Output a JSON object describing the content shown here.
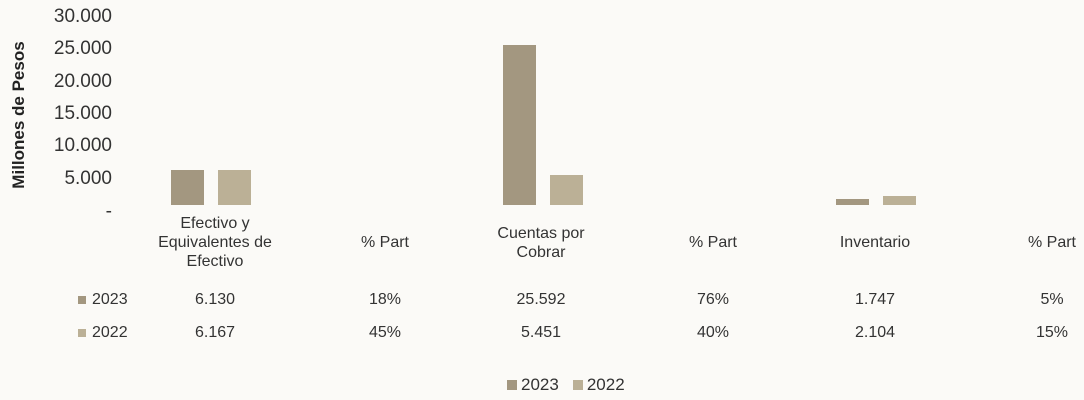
{
  "chart_data": {
    "type": "bar",
    "ylabel": "Millones de Pesos",
    "yticks": [
      "30.000",
      "25.000",
      "20.000",
      "15.000",
      "10.000",
      "5.000",
      "-"
    ],
    "ylim": [
      0,
      30000
    ],
    "categories": [
      "Efectivo y Equivalentes de Efectivo",
      "Cuentas por Cobrar",
      "Inventario"
    ],
    "series": [
      {
        "name": "2023",
        "values": [
          6130,
          25592,
          1747
        ],
        "color": "#a39780"
      },
      {
        "name": "2022",
        "values": [
          6167,
          5451,
          2104
        ],
        "color": "#bbb096"
      }
    ],
    "table": {
      "columns": [
        "Efectivo y Equivalentes de Efectivo",
        "% Part",
        "Cuentas por Cobrar",
        "% Part",
        "Inventario",
        "% Part"
      ],
      "rows": [
        {
          "label": "2023",
          "cells": [
            "6.130",
            "18%",
            "25.592",
            "76%",
            "1.747",
            "5%"
          ]
        },
        {
          "label": "2022",
          "cells": [
            "6.167",
            "45%",
            "5.451",
            "40%",
            "2.104",
            "15%"
          ]
        }
      ]
    },
    "legend": [
      "2023",
      "2022"
    ],
    "legend_position": "bottom",
    "grid": false
  }
}
